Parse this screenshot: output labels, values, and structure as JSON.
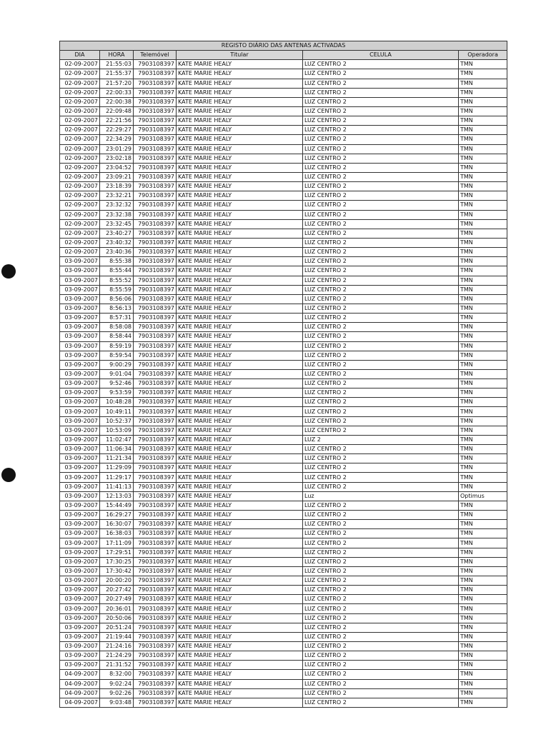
{
  "title": "REGISTO DIÁRIO DAS ANTENAS ACTIVADAS",
  "columns": [
    "DIA",
    "HORA",
    "Telemóvel",
    "Titular",
    "CELULA",
    "Operadora"
  ],
  "rows": [
    [
      "02-09-2007",
      "21:55:03",
      "7903108397",
      "KATE MARIE HEALY",
      "LUZ CENTRO 2",
      "TMN"
    ],
    [
      "02-09-2007",
      "21:55:37",
      "7903108397",
      "KATE MARIE HEALY",
      "LUZ CENTRO 2",
      "TMN"
    ],
    [
      "02-09-2007",
      "21:57:20",
      "7903108397",
      "KATE MARIE HEALY",
      "LUZ CENTRO 2",
      "TMN"
    ],
    [
      "02-09-2007",
      "22:00:33",
      "7903108397",
      "KATE MARIE HEALY",
      "LUZ CENTRO 2",
      "TMN"
    ],
    [
      "02-09-2007",
      "22:00:38",
      "7903108397",
      "KATE MARIE HEALY",
      "LUZ CENTRO 2",
      "TMN"
    ],
    [
      "02-09-2007",
      "22:09:48",
      "7903108397",
      "KATE MARIE HEALY",
      "LUZ CENTRO 2",
      "TMN"
    ],
    [
      "02-09-2007",
      "22:21:56",
      "7903108397",
      "KATE MARIE HEALY",
      "LUZ CENTRO 2",
      "TMN"
    ],
    [
      "02-09-2007",
      "22:29:27",
      "7903108397",
      "KATE MARIE HEALY",
      "LUZ CENTRO 2",
      "TMN"
    ],
    [
      "02-09-2007",
      "22:34:29",
      "7903108397",
      "KATE MARIE HEALY",
      "LUZ CENTRO 2",
      "TMN"
    ],
    [
      "02-09-2007",
      "23:01:29",
      "7903108397",
      "KATE MARIE HEALY",
      "LUZ CENTRO 2",
      "TMN"
    ],
    [
      "02-09-2007",
      "23:02:18",
      "7903108397",
      "KATE MARIE HEALY",
      "LUZ CENTRO 2",
      "TMN"
    ],
    [
      "02-09-2007",
      "23:04:52",
      "7903108397",
      "KATE MARIE HEALY",
      "LUZ CENTRO 2",
      "TMN"
    ],
    [
      "02-09-2007",
      "23:09:21",
      "7903108397",
      "KATE MARIE HEALY",
      "LUZ CENTRO 2",
      "TMN"
    ],
    [
      "02-09-2007",
      "23:18:39",
      "7903108397",
      "KATE MARIE HEALY",
      "LUZ CENTRO 2",
      "TMN"
    ],
    [
      "02-09-2007",
      "23:32:21",
      "7903108397",
      "KATE MARIE HEALY",
      "LUZ CENTRO 2",
      "TMN"
    ],
    [
      "02-09-2007",
      "23:32:32",
      "7903108397",
      "KATE MARIE HEALY",
      "LUZ CENTRO 2",
      "TMN"
    ],
    [
      "02-09-2007",
      "23:32:38",
      "7903108397",
      "KATE MARIE HEALY",
      "LUZ CENTRO 2",
      "TMN"
    ],
    [
      "02-09-2007",
      "23:32:45",
      "7903108397",
      "KATE MARIE HEALY",
      "LUZ CENTRO 2",
      "TMN"
    ],
    [
      "02-09-2007",
      "23:40:27",
      "7903108397",
      "KATE MARIE HEALY",
      "LUZ CENTRO 2",
      "TMN"
    ],
    [
      "02-09-2007",
      "23:40:32",
      "7903108397",
      "KATE MARIE HEALY",
      "LUZ CENTRO 2",
      "TMN"
    ],
    [
      "02-09-2007",
      "23:40:36",
      "7903108397",
      "KATE MARIE HEALY",
      "LUZ CENTRO 2",
      "TMN"
    ],
    [
      "03-09-2007",
      "8:55:38",
      "7903108397",
      "KATE MARIE HEALY",
      "LUZ CENTRO 2",
      "TMN"
    ],
    [
      "03-09-2007",
      "8:55:44",
      "7903108397",
      "KATE MARIE HEALY",
      "LUZ CENTRO 2",
      "TMN"
    ],
    [
      "03-09-2007",
      "8:55:52",
      "7903108397",
      "KATE MARIE HEALY",
      "LUZ CENTRO 2",
      "TMN"
    ],
    [
      "03-09-2007",
      "8:55:59",
      "7903108397",
      "KATE MARIE HEALY",
      "LUZ CENTRO 2",
      "TMN"
    ],
    [
      "03-09-2007",
      "8:56:06",
      "7903108397",
      "KATE MARIE HEALY",
      "LUZ CENTRO 2",
      "TMN"
    ],
    [
      "03-09-2007",
      "8:56:13",
      "7903108397",
      "KATE MARIE HEALY",
      "LUZ CENTRO 2",
      "TMN"
    ],
    [
      "03-09-2007",
      "8:57:31",
      "7903108397",
      "KATE MARIE HEALY",
      "LUZ CENTRO 2",
      "TMN"
    ],
    [
      "03-09-2007",
      "8:58:08",
      "7903108397",
      "KATE MARIE HEALY",
      "LUZ CENTRO 2",
      "TMN"
    ],
    [
      "03-09-2007",
      "8:58:44",
      "7903108397",
      "KATE MARIE HEALY",
      "LUZ CENTRO 2",
      "TMN"
    ],
    [
      "03-09-2007",
      "8:59:19",
      "7903108397",
      "KATE MARIE HEALY",
      "LUZ CENTRO 2",
      "TMN"
    ],
    [
      "03-09-2007",
      "8:59:54",
      "7903108397",
      "KATE MARIE HEALY",
      "LUZ CENTRO 2",
      "TMN"
    ],
    [
      "03-09-2007",
      "9:00:29",
      "7903108397",
      "KATE MARIE HEALY",
      "LUZ CENTRO 2",
      "TMN"
    ],
    [
      "03-09-2007",
      "9:01:04",
      "7903108397",
      "KATE MARIE HEALY",
      "LUZ CENTRO 2",
      "TMN"
    ],
    [
      "03-09-2007",
      "9:52:46",
      "7903108397",
      "KATE MARIE HEALY",
      "LUZ CENTRO 2",
      "TMN"
    ],
    [
      "03-09-2007",
      "9:53:59",
      "7903108397",
      "KATE MARIE HEALY",
      "LUZ CENTRO 2",
      "TMN"
    ],
    [
      "03-09-2007",
      "10:48:28",
      "7903108397",
      "KATE MARIE HEALY",
      "LUZ CENTRO 2",
      "TMN"
    ],
    [
      "03-09-2007",
      "10:49:11",
      "7903108397",
      "KATE MARIE HEALY",
      "LUZ CENTRO 2",
      "TMN"
    ],
    [
      "03-09-2007",
      "10:52:37",
      "7903108397",
      "KATE MARIE HEALY",
      "LUZ CENTRO 2",
      "TMN"
    ],
    [
      "03-09-2007",
      "10:53:09",
      "7903108397",
      "KATE MARIE HEALY",
      "LUZ CENTRO 2",
      "TMN"
    ],
    [
      "03-09-2007",
      "11:02:47",
      "7903108397",
      "KATE MARIE HEALY",
      "LUZ 2",
      "TMN"
    ],
    [
      "03-09-2007",
      "11:06:34",
      "7903108397",
      "KATE MARIE HEALY",
      "LUZ CENTRO 2",
      "TMN"
    ],
    [
      "03-09-2007",
      "11:21:34",
      "7903108397",
      "KATE MARIE HEALY",
      "LUZ CENTRO 2",
      "TMN"
    ],
    [
      "03-09-2007",
      "11:29:09",
      "7903108397",
      "KATE MARIE HEALY",
      "LUZ CENTRO 2",
      "TMN"
    ],
    [
      "03-09-2007",
      "11:29:17",
      "7903108397",
      "KATE MARIE HEALY",
      "LUZ CENTRO 2",
      "TMN"
    ],
    [
      "03-09-2007",
      "11:41:13",
      "7903108397",
      "KATE MARIE HEALY",
      "LUZ CENTRO 2",
      "TMN"
    ],
    [
      "03-09-2007",
      "12:13:03",
      "7903108397",
      "KATE MARIE HEALY",
      "Luz",
      "Optimus"
    ],
    [
      "03-09-2007",
      "15:44:49",
      "7903108397",
      "KATE MARIE HEALY",
      "LUZ CENTRO 2",
      "TMN"
    ],
    [
      "03-09-2007",
      "16:29:27",
      "7903108397",
      "KATE MARIE HEALY",
      "LUZ CENTRO 2",
      "TMN"
    ],
    [
      "03-09-2007",
      "16:30:07",
      "7903108397",
      "KATE MARIE HEALY",
      "LUZ CENTRO 2",
      "TMN"
    ],
    [
      "03-09-2007",
      "16:38:03",
      "7903108397",
      "KATE MARIE HEALY",
      "LUZ CENTRO 2",
      "TMN"
    ],
    [
      "03-09-2007",
      "17:11:09",
      "7903108397",
      "KATE MARIE HEALY",
      "LUZ CENTRO 2",
      "TMN"
    ],
    [
      "03-09-2007",
      "17:29:51",
      "7903108397",
      "KATE MARIE HEALY",
      "LUZ CENTRO 2",
      "TMN"
    ],
    [
      "03-09-2007",
      "17:30:25",
      "7903108397",
      "KATE MARIE HEALY",
      "LUZ CENTRO 2",
      "TMN"
    ],
    [
      "03-09-2007",
      "17:30:42",
      "7903108397",
      "KATE MARIE HEALY",
      "LUZ CENTRO 2",
      "TMN"
    ],
    [
      "03-09-2007",
      "20:00:20",
      "7903108397",
      "KATE MARIE HEALY",
      "LUZ CENTRO 2",
      "TMN"
    ],
    [
      "03-09-2007",
      "20:27:42",
      "7903108397",
      "KATE MARIE HEALY",
      "LUZ CENTRO 2",
      "TMN"
    ],
    [
      "03-09-2007",
      "20:27:49",
      "7903108397",
      "KATE MARIE HEALY",
      "LUZ CENTRO 2",
      "TMN"
    ],
    [
      "03-09-2007",
      "20:36:01",
      "7903108397",
      "KATE MARIE HEALY",
      "LUZ CENTRO 2",
      "TMN"
    ],
    [
      "03-09-2007",
      "20:50:06",
      "7903108397",
      "KATE MARIE HEALY",
      "LUZ CENTRO 2",
      "TMN"
    ],
    [
      "03-09-2007",
      "20:51:24",
      "7903108397",
      "KATE MARIE HEALY",
      "LUZ CENTRO 2",
      "TMN"
    ],
    [
      "03-09-2007",
      "21:19:44",
      "7903108397",
      "KATE MARIE HEALY",
      "LUZ CENTRO 2",
      "TMN"
    ],
    [
      "03-09-2007",
      "21:24:16",
      "7903108397",
      "KATE MARIE HEALY",
      "LUZ CENTRO 2",
      "TMN"
    ],
    [
      "03-09-2007",
      "21:24:29",
      "7903108397",
      "KATE MARIE HEALY",
      "LUZ CENTRO 2",
      "TMN"
    ],
    [
      "03-09-2007",
      "21:31:52",
      "7903108397",
      "KATE MARIE HEALY",
      "LUZ CENTRO 2",
      "TMN"
    ],
    [
      "04-09-2007",
      "8:32:00",
      "7903108397",
      "KATE MARIE HEALY",
      "LUZ CENTRO 2",
      "TMN"
    ],
    [
      "04-09-2007",
      "9:02:24",
      "7903108397",
      "KATE MARIE HEALY",
      "LUZ CENTRO 2",
      "TMN"
    ],
    [
      "04-09-2007",
      "9:02:26",
      "7903108397",
      "KATE MARIE HEALY",
      "LUZ CENTRO 2",
      "TMN"
    ],
    [
      "04-09-2007",
      "9:03:48",
      "7903108397",
      "KATE MARIE HEALY",
      "LUZ CENTRO 2",
      "TMN"
    ]
  ]
}
